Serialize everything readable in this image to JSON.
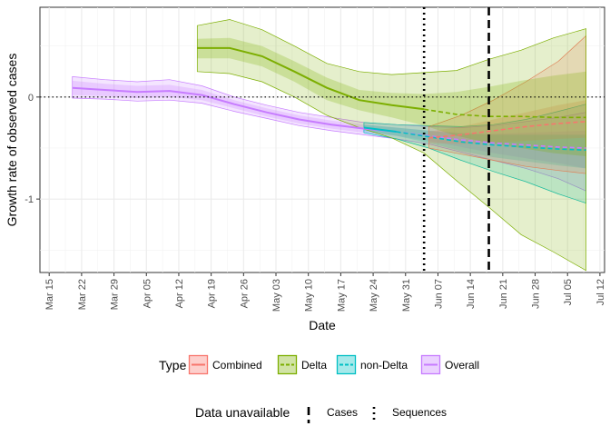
{
  "chart_data": {
    "type": "line",
    "title": "",
    "xlabel": "Date",
    "ylabel": "Growth rate of observed cases",
    "grid": true,
    "legend_placement": "bottom",
    "x_tick_labels": [
      "Mar 15",
      "Mar 22",
      "Mar 29",
      "Apr 05",
      "Apr 12",
      "Apr 19",
      "Apr 26",
      "May 03",
      "May 10",
      "May 17",
      "May 24",
      "May 31",
      "Jun 07",
      "Jun 14",
      "Jun 21",
      "Jun 28",
      "Jul 05",
      "Jul 12"
    ],
    "y_ticks": [
      -1,
      0
    ],
    "y_tick_labels": [
      "-1",
      "0"
    ],
    "xlim": [
      "2021-03-13",
      "2021-07-13"
    ],
    "ylim": [
      -1.72,
      0.88
    ],
    "reference_hline": 0,
    "vlines": [
      {
        "name": "Sequences",
        "date": "2021-06-04",
        "style": "dotted"
      },
      {
        "name": "Cases",
        "date": "2021-06-18",
        "style": "dashed"
      }
    ],
    "series": [
      {
        "name": "Overall",
        "color": "#c77cff",
        "points": [
          {
            "date": "2021-03-20",
            "mid": 0.09,
            "q1": 0.02,
            "q2": 0.16,
            "o1": -0.01,
            "o2": 0.2
          },
          {
            "date": "2021-03-27",
            "mid": 0.07,
            "q1": 0.01,
            "q2": 0.13,
            "o1": -0.02,
            "o2": 0.17
          },
          {
            "date": "2021-04-03",
            "mid": 0.05,
            "q1": -0.01,
            "q2": 0.11,
            "o1": -0.04,
            "o2": 0.15
          },
          {
            "date": "2021-04-10",
            "mid": 0.06,
            "q1": 0.0,
            "q2": 0.12,
            "o1": -0.03,
            "o2": 0.17
          },
          {
            "date": "2021-04-17",
            "mid": 0.02,
            "q1": -0.03,
            "q2": 0.07,
            "o1": -0.06,
            "o2": 0.11
          },
          {
            "date": "2021-04-24",
            "mid": -0.07,
            "q1": -0.11,
            "q2": -0.03,
            "o1": -0.14,
            "o2": 0.0
          },
          {
            "date": "2021-05-01",
            "mid": -0.15,
            "q1": -0.19,
            "q2": -0.11,
            "o1": -0.21,
            "o2": -0.08
          },
          {
            "date": "2021-05-08",
            "mid": -0.22,
            "q1": -0.26,
            "q2": -0.18,
            "o1": -0.28,
            "o2": -0.15
          },
          {
            "date": "2021-05-15",
            "mid": -0.27,
            "q1": -0.31,
            "q2": -0.23,
            "o1": -0.33,
            "o2": -0.2
          },
          {
            "date": "2021-05-22",
            "mid": -0.31,
            "q1": -0.35,
            "q2": -0.27,
            "o1": -0.37,
            "o2": -0.25
          },
          {
            "date": "2021-05-29",
            "mid": -0.34,
            "q1": -0.38,
            "q2": -0.3,
            "o1": -0.41,
            "o2": -0.27
          },
          {
            "date": "2021-06-05",
            "mid": -0.38,
            "q1": -0.43,
            "q2": -0.33,
            "o1": -0.46,
            "o2": -0.29
          },
          {
            "date": "2021-06-12",
            "mid": -0.42,
            "q1": -0.49,
            "q2": -0.35,
            "o1": -0.54,
            "o2": -0.3
          },
          {
            "date": "2021-06-19",
            "mid": -0.45,
            "q1": -0.55,
            "q2": -0.36,
            "o1": -0.62,
            "o2": -0.28
          },
          {
            "date": "2021-06-26",
            "mid": -0.47,
            "q1": -0.6,
            "q2": -0.35,
            "o1": -0.7,
            "o2": -0.24
          },
          {
            "date": "2021-07-03",
            "mid": -0.49,
            "q1": -0.65,
            "q2": -0.34,
            "o1": -0.8,
            "o2": -0.2
          },
          {
            "date": "2021-07-09",
            "mid": -0.5,
            "q1": -0.7,
            "q2": -0.33,
            "o1": -0.92,
            "o2": -0.15
          }
        ]
      },
      {
        "name": "non-Delta",
        "color": "#00bfc4",
        "points": [
          {
            "date": "2021-05-22",
            "mid": -0.3,
            "q1": -0.33,
            "q2": -0.27,
            "o1": -0.35,
            "o2": -0.25
          },
          {
            "date": "2021-05-29",
            "mid": -0.34,
            "q1": -0.38,
            "q2": -0.3,
            "o1": -0.41,
            "o2": -0.27
          },
          {
            "date": "2021-06-05",
            "mid": -0.39,
            "q1": -0.45,
            "q2": -0.33,
            "o1": -0.5,
            "o2": -0.28
          },
          {
            "date": "2021-06-12",
            "mid": -0.44,
            "q1": -0.53,
            "q2": -0.36,
            "o1": -0.62,
            "o2": -0.29
          },
          {
            "date": "2021-06-19",
            "mid": -0.47,
            "q1": -0.59,
            "q2": -0.37,
            "o1": -0.73,
            "o2": -0.27
          },
          {
            "date": "2021-06-26",
            "mid": -0.49,
            "q1": -0.63,
            "q2": -0.37,
            "o1": -0.83,
            "o2": -0.22
          },
          {
            "date": "2021-07-03",
            "mid": -0.51,
            "q1": -0.67,
            "q2": -0.37,
            "o1": -0.95,
            "o2": -0.14
          },
          {
            "date": "2021-07-09",
            "mid": -0.52,
            "q1": -0.7,
            "q2": -0.37,
            "o1": -1.04,
            "o2": -0.07
          }
        ]
      },
      {
        "name": "Combined",
        "color": "#f8766d",
        "points": [
          {
            "date": "2021-06-05",
            "mid": -0.4,
            "q1": -0.45,
            "q2": -0.34,
            "o1": -0.5,
            "o2": -0.29
          },
          {
            "date": "2021-06-12",
            "mid": -0.37,
            "q1": -0.46,
            "q2": -0.29,
            "o1": -0.56,
            "o2": -0.18
          },
          {
            "date": "2021-06-19",
            "mid": -0.33,
            "q1": -0.45,
            "q2": -0.22,
            "o1": -0.62,
            "o2": -0.03
          },
          {
            "date": "2021-06-26",
            "mid": -0.29,
            "q1": -0.43,
            "q2": -0.15,
            "o1": -0.68,
            "o2": 0.15
          },
          {
            "date": "2021-07-03",
            "mid": -0.26,
            "q1": -0.41,
            "q2": -0.08,
            "o1": -0.72,
            "o2": 0.35
          },
          {
            "date": "2021-07-09",
            "mid": -0.24,
            "q1": -0.4,
            "q2": -0.03,
            "o1": -0.75,
            "o2": 0.6
          }
        ]
      },
      {
        "name": "Delta",
        "color": "#7cae00",
        "points": [
          {
            "date": "2021-04-16",
            "mid": 0.48,
            "q1": 0.38,
            "q2": 0.57,
            "o1": 0.25,
            "o2": 0.7
          },
          {
            "date": "2021-04-23",
            "mid": 0.48,
            "q1": 0.38,
            "q2": 0.58,
            "o1": 0.23,
            "o2": 0.76
          },
          {
            "date": "2021-04-30",
            "mid": 0.4,
            "q1": 0.3,
            "q2": 0.5,
            "o1": 0.15,
            "o2": 0.66
          },
          {
            "date": "2021-05-07",
            "mid": 0.25,
            "q1": 0.15,
            "q2": 0.35,
            "o1": 0.0,
            "o2": 0.5
          },
          {
            "date": "2021-05-14",
            "mid": 0.09,
            "q1": -0.03,
            "q2": 0.19,
            "o1": -0.18,
            "o2": 0.33
          },
          {
            "date": "2021-05-21",
            "mid": -0.03,
            "q1": -0.13,
            "q2": 0.07,
            "o1": -0.3,
            "o2": 0.25
          },
          {
            "date": "2021-05-28",
            "mid": -0.08,
            "q1": -0.2,
            "q2": 0.04,
            "o1": -0.4,
            "o2": 0.22
          },
          {
            "date": "2021-06-04",
            "mid": -0.12,
            "q1": -0.28,
            "q2": 0.03,
            "o1": -0.55,
            "o2": 0.24
          },
          {
            "date": "2021-06-11",
            "mid": -0.17,
            "q1": -0.38,
            "q2": 0.05,
            "o1": -0.82,
            "o2": 0.26
          },
          {
            "date": "2021-06-18",
            "mid": -0.19,
            "q1": -0.45,
            "q2": 0.1,
            "o1": -1.08,
            "o2": 0.37
          },
          {
            "date": "2021-06-25",
            "mid": -0.19,
            "q1": -0.5,
            "q2": 0.16,
            "o1": -1.35,
            "o2": 0.46
          },
          {
            "date": "2021-07-02",
            "mid": -0.2,
            "q1": -0.55,
            "q2": 0.21,
            "o1": -1.52,
            "o2": 0.58
          },
          {
            "date": "2021-07-09",
            "mid": -0.2,
            "q1": -0.58,
            "q2": 0.25,
            "o1": -1.7,
            "o2": 0.67
          }
        ]
      }
    ]
  },
  "legend": {
    "type_title": "Type",
    "type_items": [
      {
        "label": "Combined",
        "color": "#f8766d"
      },
      {
        "label": "Delta",
        "color": "#7cae00"
      },
      {
        "label": "non-Delta",
        "color": "#00bfc4"
      },
      {
        "label": "Overall",
        "color": "#c77cff"
      }
    ],
    "unavailable_title": "Data unavailable",
    "unavailable_items": [
      {
        "label": "Cases",
        "style": "dashed"
      },
      {
        "label": "Sequences",
        "style": "dotted"
      }
    ]
  }
}
